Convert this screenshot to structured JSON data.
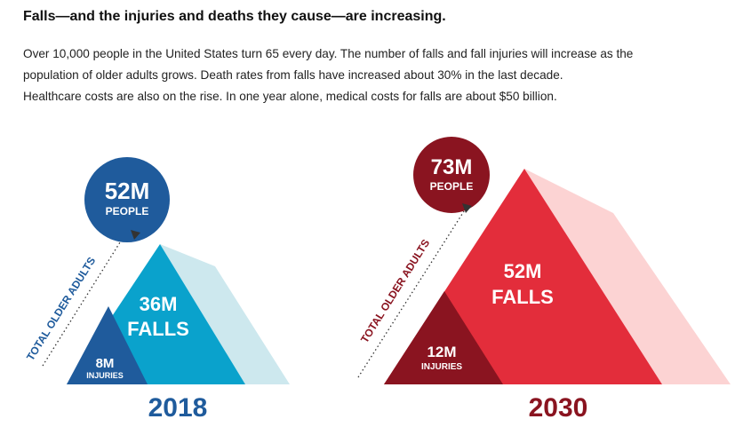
{
  "header": {
    "title": "Falls—and the injuries and deaths they cause—are increasing.",
    "lines": [
      "Over 10,000 people in the United States turn 65 every day. The number of falls and fall injuries will increase as the",
      "population of older adults grows. Death rates from falls have increased about 30% in the last decade.",
      "Healthcare costs are also on the rise. In one year alone, medical costs for falls are about $50 billion."
    ]
  },
  "panels": [
    {
      "year": "2018",
      "axis_label": "TOTAL OLDER ADULTS",
      "people": "52M",
      "people_label": "PEOPLE",
      "falls": "36M",
      "falls_label": "FALLS",
      "injuries": "8M",
      "injuries_label": "INJURIES"
    },
    {
      "year": "2030",
      "axis_label": "TOTAL OLDER ADULTS",
      "people": "73M",
      "people_label": "PEOPLE",
      "falls": "52M",
      "falls_label": "FALLS",
      "injuries": "12M",
      "injuries_label": "INJURIES"
    }
  ]
}
